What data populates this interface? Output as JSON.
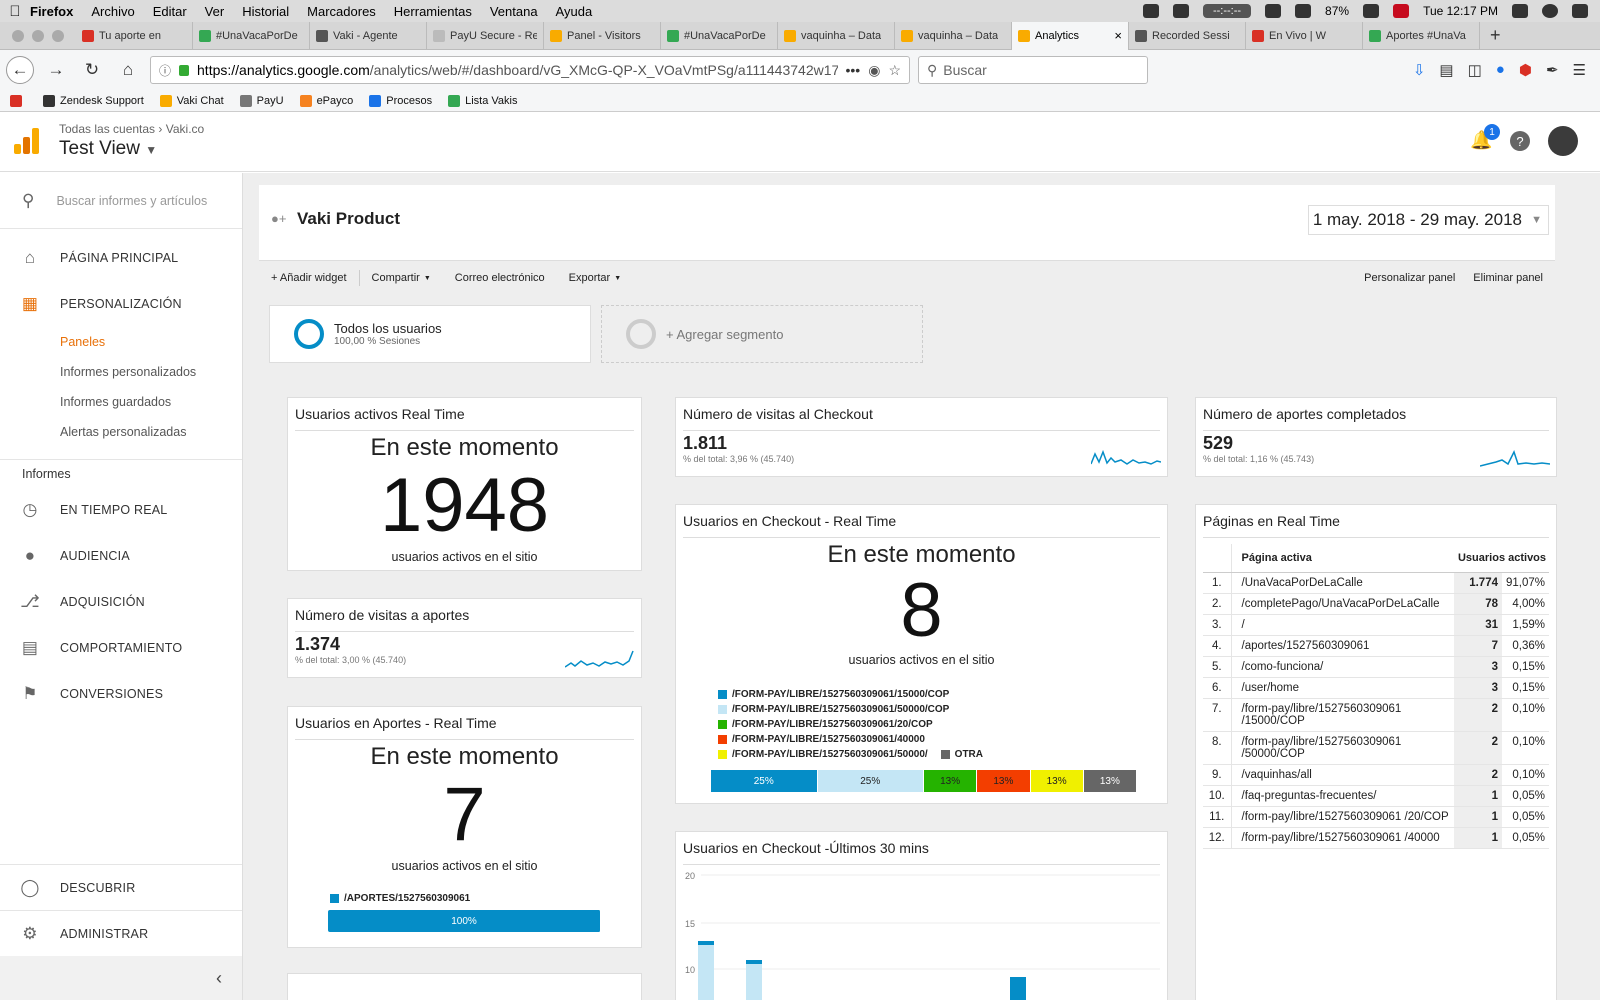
{
  "mac_menu": {
    "app": "Firefox",
    "items": [
      "Archivo",
      "Editar",
      "Ver",
      "Historial",
      "Marcadores",
      "Herramientas",
      "Ventana",
      "Ayuda"
    ],
    "timer": "--:--:--",
    "battery": "87%",
    "clock": "Tue 12:17 PM"
  },
  "tabs": [
    {
      "label": "Tu aporte en",
      "color": "#d93025"
    },
    {
      "label": "#UnaVacaPorDe",
      "color": "#34a853"
    },
    {
      "label": "Vaki - Agente",
      "color": "#555555"
    },
    {
      "label": "PayU Secure - Repo",
      "color": "#bbbbbb"
    },
    {
      "label": "Panel - Visitors",
      "color": "#f9ab00"
    },
    {
      "label": "#UnaVacaPorDe",
      "color": "#34a853"
    },
    {
      "label": "vaquinha – Data",
      "color": "#f9ab00"
    },
    {
      "label": "vaquinha – Data",
      "color": "#f9ab00"
    },
    {
      "label": "Analytics",
      "color": "#f9ab00",
      "active": true
    },
    {
      "label": "Recorded Sessi",
      "color": "#555555"
    },
    {
      "label": "En Vivo | W",
      "color": "#d93025"
    },
    {
      "label": "Aportes #UnaVa",
      "color": "#34a853"
    }
  ],
  "browser": {
    "url_host": "https://analytics.google.com",
    "url_path": "/analytics/web/#/dashboard/vG_XMcG-QP-X_VOaVmtPSg/a111443742w17",
    "search_placeholder": "Buscar"
  },
  "bookmarks": [
    {
      "label": "",
      "color": "#d93025"
    },
    {
      "label": "Zendesk Support",
      "color": "#333333"
    },
    {
      "label": "Vaki Chat",
      "color": "#f9ab00"
    },
    {
      "label": "PayU",
      "color": "#777777"
    },
    {
      "label": "ePayco",
      "color": "#f58220"
    },
    {
      "label": "Procesos",
      "color": "#1a73e8"
    },
    {
      "label": "Lista Vakis",
      "color": "#34a853"
    }
  ],
  "ga_header": {
    "crumb_all": "Todas las cuentas",
    "crumb_account": "Vaki.co",
    "view": "Test View",
    "notifications": "1"
  },
  "sidebar": {
    "search_placeholder": "Buscar informes y artículos",
    "home": "PÁGINA PRINCIPAL",
    "custom": "PERSONALIZACIÓN",
    "subs": [
      "Paneles",
      "Informes personalizados",
      "Informes guardados",
      "Alertas personalizadas"
    ],
    "reports_heading": "Informes",
    "reports": [
      "EN TIEMPO REAL",
      "AUDIENCIA",
      "ADQUISICIÓN",
      "COMPORTAMIENTO",
      "CONVERSIONES"
    ],
    "discover": "DESCUBRIR",
    "admin": "ADMINISTRAR"
  },
  "dashboard": {
    "title": "Vaki Product",
    "date_range": "1 may. 2018 - 29 may. 2018",
    "toolbar": [
      "+ Añadir widget",
      "Compartir",
      "Correo electrónico",
      "Exportar"
    ],
    "toolbar_right": [
      "Personalizar panel",
      "Eliminar panel"
    ],
    "segment_name": "Todos los usuarios",
    "segment_sub": "100,00 % Sesiones",
    "add_segment": "+ Agregar segmento"
  },
  "widgets": {
    "rt_active": {
      "title": "Usuarios activos Real Time",
      "now": "En este momento",
      "value": "1948",
      "sub": "usuarios activos en el sitio"
    },
    "visits_aportes": {
      "title": "Número de visitas a aportes",
      "value": "1.374",
      "pct": "% del total: 3,00 % (45.740)"
    },
    "rt_aportes": {
      "title": "Usuarios en Aportes - Real Time",
      "now": "En este momento",
      "value": "7",
      "sub": "usuarios activos en el sitio",
      "legend": "/APORTES/1527560309061",
      "bar": "100%"
    },
    "visits_checkout": {
      "title": "Número de visitas al Checkout",
      "value": "1.811",
      "pct": "% del total: 3,96 % (45.740)"
    },
    "rt_checkout": {
      "title": "Usuarios en Checkout - Real Time",
      "now": "En este momento",
      "value": "8",
      "sub": "usuarios activos en el sitio",
      "legend": [
        {
          "label": "/FORM-PAY/LIBRE/1527560309061/15000/COP",
          "color": "#058dc7"
        },
        {
          "label": "/FORM-PAY/LIBRE/1527560309061/50000/COP",
          "color": "#c4e6f5"
        },
        {
          "label": "/FORM-PAY/LIBRE/1527560309061/20/COP",
          "color": "#25b300"
        },
        {
          "label": "/FORM-PAY/LIBRE/1527560309061/40000",
          "color": "#f33e00"
        },
        {
          "label": "/FORM-PAY/LIBRE/1527560309061/50000/",
          "color": "#f0f000"
        },
        {
          "label": "OTRA",
          "color": "#666666"
        }
      ],
      "bars": [
        {
          "pct": "25%",
          "share": 25,
          "color": "#058dc7"
        },
        {
          "pct": "25%",
          "share": 25,
          "color": "#c4e6f5"
        },
        {
          "pct": "13%",
          "share": 12.5,
          "color": "#25b300"
        },
        {
          "pct": "13%",
          "share": 12.5,
          "color": "#f33e00"
        },
        {
          "pct": "13%",
          "share": 12.5,
          "color": "#f0f000"
        },
        {
          "pct": "13%",
          "share": 12.5,
          "color": "#666666"
        }
      ]
    },
    "last30": {
      "title": "Usuarios en Checkout -Últimos 30 mins",
      "y_ticks": [
        "20",
        "15",
        "10"
      ]
    },
    "aportes_completed": {
      "title": "Número de aportes completados",
      "value": "529",
      "pct": "% del total: 1,16 % (45.743)"
    },
    "pages_rt": {
      "title": "Páginas en Real Time",
      "col_page": "Página activa",
      "col_users": "Usuarios activos",
      "rows": [
        {
          "n": "1.",
          "page": "/UnaVacaPorDeLaCalle",
          "count": "1.774",
          "pct": "91,07%"
        },
        {
          "n": "2.",
          "page": "/completePago/UnaVacaPorDeLaCalle",
          "count": "78",
          "pct": "4,00%"
        },
        {
          "n": "3.",
          "page": "/",
          "count": "31",
          "pct": "1,59%"
        },
        {
          "n": "4.",
          "page": "/aportes/1527560309061",
          "count": "7",
          "pct": "0,36%"
        },
        {
          "n": "5.",
          "page": "/como-funciona/",
          "count": "3",
          "pct": "0,15%"
        },
        {
          "n": "6.",
          "page": "/user/home",
          "count": "3",
          "pct": "0,15%"
        },
        {
          "n": "7.",
          "page": "/form-pay/libre/1527560309061 /15000/COP",
          "count": "2",
          "pct": "0,10%"
        },
        {
          "n": "8.",
          "page": "/form-pay/libre/1527560309061 /50000/COP",
          "count": "2",
          "pct": "0,10%"
        },
        {
          "n": "9.",
          "page": "/vaquinhas/all",
          "count": "2",
          "pct": "0,10%"
        },
        {
          "n": "10.",
          "page": "/faq-preguntas-frecuentes/",
          "count": "1",
          "pct": "0,05%"
        },
        {
          "n": "11.",
          "page": "/form-pay/libre/1527560309061 /20/COP",
          "count": "1",
          "pct": "0,05%"
        },
        {
          "n": "12.",
          "page": "/form-pay/libre/1527560309061 /40000",
          "count": "1",
          "pct": "0,05%"
        }
      ]
    }
  }
}
